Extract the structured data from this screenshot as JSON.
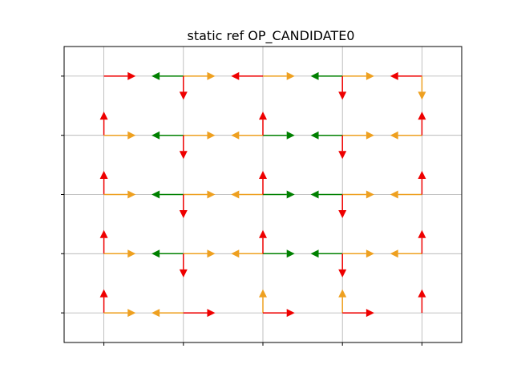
{
  "chart_data": {
    "type": "quiver",
    "title": "static ref OP_CANDIDATE0",
    "xlabel": "",
    "ylabel": "",
    "xlim": [
      -0.5,
      4.5
    ],
    "ylim": [
      -0.5,
      4.5
    ],
    "x_ticks": [
      0,
      1,
      2,
      3,
      4
    ],
    "y_ticks": [
      0,
      1,
      2,
      3,
      4
    ],
    "x_tick_labels": [
      "",
      "",
      "",
      "",
      ""
    ],
    "y_tick_labels": [
      "",
      "",
      "",
      "",
      ""
    ],
    "grid": true,
    "colors": {
      "red": "#ee0000",
      "green": "#008000",
      "orange": "#eea020",
      "grid": "#b0b0b0"
    },
    "arrows": [
      {
        "x": 0,
        "y": 0,
        "dir": "up",
        "color": "red"
      },
      {
        "x": 0,
        "y": 0,
        "dir": "right",
        "color": "orange"
      },
      {
        "x": 1,
        "y": 0,
        "dir": "left",
        "color": "orange"
      },
      {
        "x": 1,
        "y": 0,
        "dir": "right",
        "color": "red"
      },
      {
        "x": 2,
        "y": 0,
        "dir": "up",
        "color": "orange"
      },
      {
        "x": 2,
        "y": 0,
        "dir": "right",
        "color": "red"
      },
      {
        "x": 3,
        "y": 0,
        "dir": "up",
        "color": "orange"
      },
      {
        "x": 3,
        "y": 0,
        "dir": "right",
        "color": "red"
      },
      {
        "x": 4,
        "y": 0,
        "dir": "up",
        "color": "red"
      },
      {
        "x": 0,
        "y": 1,
        "dir": "up",
        "color": "red"
      },
      {
        "x": 0,
        "y": 1,
        "dir": "right",
        "color": "orange"
      },
      {
        "x": 1,
        "y": 1,
        "dir": "left",
        "color": "green"
      },
      {
        "x": 1,
        "y": 1,
        "dir": "right",
        "color": "orange"
      },
      {
        "x": 1,
        "y": 1,
        "dir": "down",
        "color": "red"
      },
      {
        "x": 2,
        "y": 1,
        "dir": "left",
        "color": "orange"
      },
      {
        "x": 2,
        "y": 1,
        "dir": "right",
        "color": "green"
      },
      {
        "x": 2,
        "y": 1,
        "dir": "up",
        "color": "red"
      },
      {
        "x": 3,
        "y": 1,
        "dir": "left",
        "color": "green"
      },
      {
        "x": 3,
        "y": 1,
        "dir": "right",
        "color": "orange"
      },
      {
        "x": 3,
        "y": 1,
        "dir": "down",
        "color": "red"
      },
      {
        "x": 4,
        "y": 1,
        "dir": "left",
        "color": "orange"
      },
      {
        "x": 4,
        "y": 1,
        "dir": "up",
        "color": "red"
      },
      {
        "x": 0,
        "y": 2,
        "dir": "up",
        "color": "red"
      },
      {
        "x": 0,
        "y": 2,
        "dir": "right",
        "color": "orange"
      },
      {
        "x": 1,
        "y": 2,
        "dir": "left",
        "color": "green"
      },
      {
        "x": 1,
        "y": 2,
        "dir": "right",
        "color": "orange"
      },
      {
        "x": 1,
        "y": 2,
        "dir": "down",
        "color": "red"
      },
      {
        "x": 2,
        "y": 2,
        "dir": "left",
        "color": "orange"
      },
      {
        "x": 2,
        "y": 2,
        "dir": "right",
        "color": "green"
      },
      {
        "x": 2,
        "y": 2,
        "dir": "up",
        "color": "red"
      },
      {
        "x": 3,
        "y": 2,
        "dir": "left",
        "color": "green"
      },
      {
        "x": 3,
        "y": 2,
        "dir": "right",
        "color": "orange"
      },
      {
        "x": 3,
        "y": 2,
        "dir": "down",
        "color": "red"
      },
      {
        "x": 4,
        "y": 2,
        "dir": "left",
        "color": "orange"
      },
      {
        "x": 4,
        "y": 2,
        "dir": "up",
        "color": "red"
      },
      {
        "x": 0,
        "y": 3,
        "dir": "up",
        "color": "red"
      },
      {
        "x": 0,
        "y": 3,
        "dir": "right",
        "color": "orange"
      },
      {
        "x": 1,
        "y": 3,
        "dir": "left",
        "color": "green"
      },
      {
        "x": 1,
        "y": 3,
        "dir": "right",
        "color": "orange"
      },
      {
        "x": 1,
        "y": 3,
        "dir": "down",
        "color": "red"
      },
      {
        "x": 2,
        "y": 3,
        "dir": "left",
        "color": "orange"
      },
      {
        "x": 2,
        "y": 3,
        "dir": "right",
        "color": "green"
      },
      {
        "x": 2,
        "y": 3,
        "dir": "up",
        "color": "red"
      },
      {
        "x": 3,
        "y": 3,
        "dir": "left",
        "color": "green"
      },
      {
        "x": 3,
        "y": 3,
        "dir": "right",
        "color": "orange"
      },
      {
        "x": 3,
        "y": 3,
        "dir": "down",
        "color": "red"
      },
      {
        "x": 4,
        "y": 3,
        "dir": "left",
        "color": "orange"
      },
      {
        "x": 4,
        "y": 3,
        "dir": "up",
        "color": "red"
      },
      {
        "x": 0,
        "y": 4,
        "dir": "right",
        "color": "red"
      },
      {
        "x": 1,
        "y": 4,
        "dir": "left",
        "color": "green"
      },
      {
        "x": 1,
        "y": 4,
        "dir": "right",
        "color": "orange"
      },
      {
        "x": 1,
        "y": 4,
        "dir": "down",
        "color": "red"
      },
      {
        "x": 2,
        "y": 4,
        "dir": "left",
        "color": "red"
      },
      {
        "x": 2,
        "y": 4,
        "dir": "right",
        "color": "orange"
      },
      {
        "x": 3,
        "y": 4,
        "dir": "left",
        "color": "green"
      },
      {
        "x": 3,
        "y": 4,
        "dir": "right",
        "color": "orange"
      },
      {
        "x": 3,
        "y": 4,
        "dir": "down",
        "color": "red"
      },
      {
        "x": 4,
        "y": 4,
        "dir": "left",
        "color": "red"
      },
      {
        "x": 4,
        "y": 4,
        "dir": "down",
        "color": "orange"
      }
    ]
  }
}
